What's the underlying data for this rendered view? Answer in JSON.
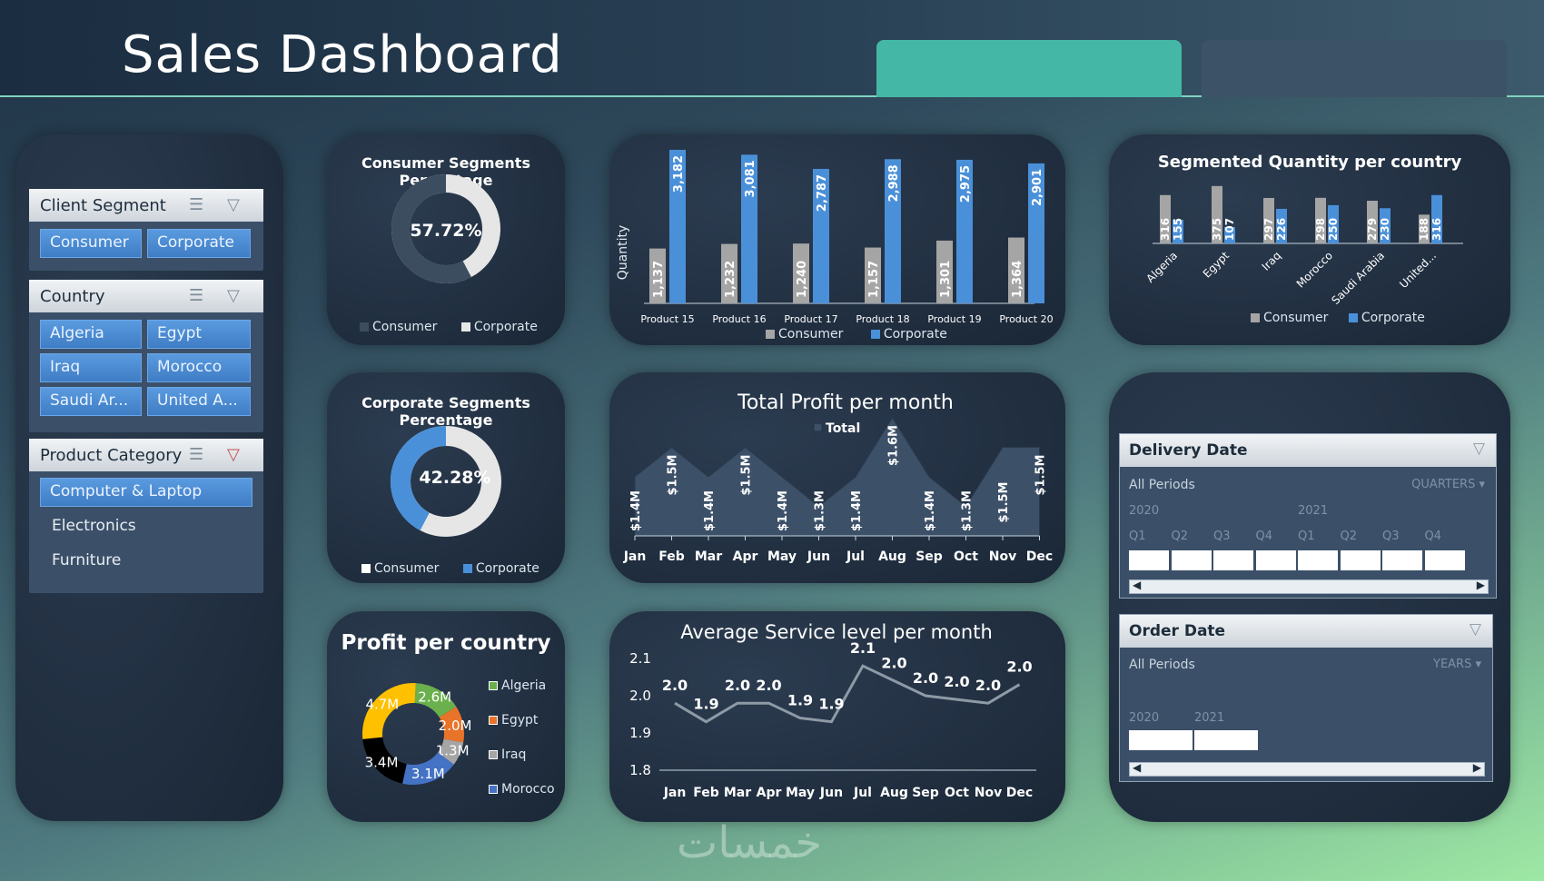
{
  "header": {
    "title": "Sales Dashboard"
  },
  "slicers": {
    "client_segment": {
      "title": "Client Segment",
      "items": [
        "Consumer",
        "Corporate"
      ]
    },
    "country": {
      "title": "Country",
      "items": [
        "Algeria",
        "Egypt",
        "Iraq",
        "Morocco",
        "Saudi Ar...",
        "United A..."
      ]
    },
    "product_category": {
      "title": "Product Category",
      "items": [
        "Computer & Laptop",
        "Electronics",
        "Furniture"
      ]
    }
  },
  "consumer_pct": {
    "title": "Consumer Segments Percentage",
    "value_label": "57.72%",
    "value": 57.72,
    "legend": [
      "Consumer",
      "Corporate"
    ]
  },
  "corporate_pct": {
    "title": "Corporate Segments Percentage",
    "value_label": "42.28%",
    "value": 42.28,
    "legend": [
      "Consumer",
      "Corporate"
    ]
  },
  "profit_country": {
    "title": "Profit per country",
    "slices": [
      {
        "label": "2.6M",
        "value": 2.6,
        "color": "#6ab04c"
      },
      {
        "label": "2.0M",
        "value": 2.0,
        "color": "#e8742a"
      },
      {
        "label": "1.3M",
        "value": 1.3,
        "color": "#a5a5a5"
      },
      {
        "label": "3.1M",
        "value": 3.1,
        "color": "#4472c4"
      },
      {
        "label": "3.4M",
        "value": 3.4,
        "color": "#000000"
      },
      {
        "label": "4.7M",
        "value": 4.7,
        "color": "#ffc000"
      }
    ],
    "legend": [
      {
        "name": "Algeria",
        "color": "#6ab04c"
      },
      {
        "name": "Egypt",
        "color": "#e8742a"
      },
      {
        "name": "Iraq",
        "color": "#a5a5a5"
      },
      {
        "name": "Morocco",
        "color": "#4472c4"
      }
    ]
  },
  "chart_data": [
    {
      "type": "bar",
      "ylabel": "Quantity",
      "categories": [
        "Product 15",
        "Product 16",
        "Product 17",
        "Product 18",
        "Product 19",
        "Product 20"
      ],
      "series": [
        {
          "name": "Consumer",
          "values": [
            1137,
            1232,
            1240,
            1157,
            1301,
            1364
          ],
          "color": "#a5a5a5"
        },
        {
          "name": "Corporate",
          "values": [
            3182,
            3081,
            2787,
            2988,
            2975,
            2901
          ],
          "color": "#4a90d9"
        }
      ],
      "labels": {
        "Consumer": [
          "1,137",
          "1,232",
          "1,240",
          "1,157",
          "1,301",
          "1,364"
        ],
        "Corporate": [
          "3,182",
          "3,081",
          "2,787",
          "2,988",
          "2,975",
          "2,901"
        ]
      },
      "legend_placement": "bottom"
    },
    {
      "type": "bar",
      "title": "Segmented Quantity per country",
      "categories": [
        "Algeria",
        "Egypt",
        "Iraq",
        "Morocco",
        "Saudi Arabia",
        "United..."
      ],
      "series": [
        {
          "name": "Consumer",
          "values": [
            316,
            375,
            297,
            298,
            279,
            188
          ],
          "color": "#a5a5a5"
        },
        {
          "name": "Corporate",
          "values": [
            155,
            107,
            226,
            250,
            230,
            316
          ],
          "color": "#4a90d9"
        }
      ],
      "legend_placement": "bottom"
    },
    {
      "type": "area",
      "title": "Total Profit per month",
      "legend": "Total",
      "categories": [
        "Jan",
        "Feb",
        "Mar",
        "Apr",
        "May",
        "Jun",
        "Jul",
        "Aug",
        "Sep",
        "Oct",
        "Nov",
        "Dec"
      ],
      "values": [
        1.4,
        1.5,
        1.4,
        1.5,
        1.4,
        1.3,
        1.4,
        1.6,
        1.4,
        1.3,
        1.5,
        1.5
      ],
      "labels": [
        "$1.4M",
        "$1.5M",
        "$1.4M",
        "$1.5M",
        "$1.4M",
        "$1.3M",
        "$1.4M",
        "$1.6M",
        "$1.4M",
        "$1.3M",
        "$1.5M",
        "$1.5M"
      ],
      "color": "#3c5068"
    },
    {
      "type": "line",
      "title": "Average Service level per month",
      "categories": [
        "Jan",
        "Feb",
        "Mar",
        "Apr",
        "May",
        "Jun",
        "Jul",
        "Aug",
        "Sep",
        "Oct",
        "Nov",
        "Dec"
      ],
      "values": [
        2.0,
        1.9,
        2.0,
        2.0,
        1.9,
        1.9,
        2.1,
        2.0,
        2.0,
        2.0,
        2.0,
        2.0
      ],
      "labels": [
        "2.0",
        "1.9",
        "2.0",
        "2.0",
        "1.9",
        "1.9",
        "2.1",
        "2.0",
        "2.0",
        "2.0",
        "2.0",
        "2.0"
      ],
      "y_ticks": [
        "2.1",
        "2.0",
        "1.9",
        "1.8"
      ],
      "ylim": [
        1.8,
        2.1
      ],
      "color": "#8e9aa5"
    }
  ],
  "timelines": {
    "delivery": {
      "title": "Delivery Date",
      "periods": "All Periods",
      "level": "QUARTERS ▾",
      "years": [
        "2020",
        "2021"
      ],
      "quarters": [
        "Q1",
        "Q2",
        "Q3",
        "Q4",
        "Q1",
        "Q2",
        "Q3",
        "Q4"
      ]
    },
    "order": {
      "title": "Order Date",
      "periods": "All Periods",
      "level": "YEARS ▾",
      "years": [
        "2020",
        "2021"
      ]
    }
  },
  "watermark": "خمسات"
}
